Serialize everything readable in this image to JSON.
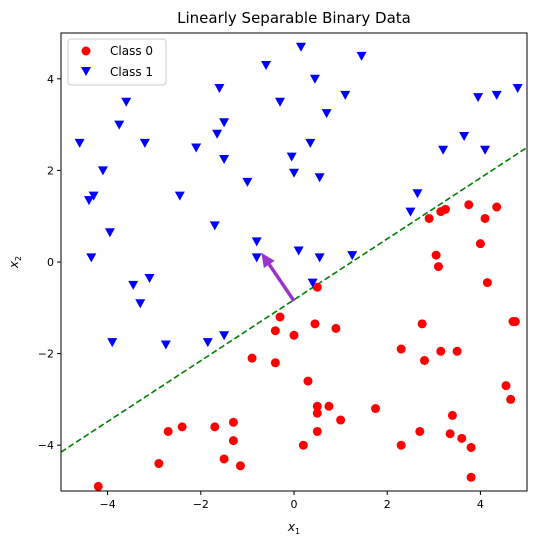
{
  "chart_data": {
    "type": "scatter",
    "title": "Linearly Separable Binary Data",
    "xlabel": "x",
    "xlabel_sub": "1",
    "ylabel": "x",
    "ylabel_sub": "2",
    "xlim": [
      -5,
      5
    ],
    "ylim": [
      -5,
      5
    ],
    "xticks": [
      -4,
      -2,
      0,
      2,
      4
    ],
    "yticks": [
      -4,
      -2,
      0,
      2,
      4
    ],
    "xtick_labels": [
      "−4",
      "−2",
      "0",
      "2",
      "4"
    ],
    "ytick_labels": [
      "−4",
      "−2",
      "0",
      "2",
      "4"
    ],
    "legend_position": "top-left",
    "series": [
      {
        "name": "Class 0",
        "marker": "circle",
        "color": "#ff0000",
        "points": [
          [
            -4.2,
            -4.9
          ],
          [
            -2.9,
            -4.4
          ],
          [
            -2.7,
            -3.7
          ],
          [
            -2.4,
            -3.6
          ],
          [
            -1.7,
            -3.6
          ],
          [
            -1.5,
            -4.3
          ],
          [
            -1.3,
            -3.9
          ],
          [
            -1.3,
            -3.5
          ],
          [
            -1.15,
            -4.45
          ],
          [
            -0.9,
            -2.1
          ],
          [
            -0.4,
            -2.2
          ],
          [
            -0.4,
            -1.5
          ],
          [
            -0.3,
            -1.2
          ],
          [
            0.0,
            -1.6
          ],
          [
            0.2,
            -4.0
          ],
          [
            0.3,
            -2.6
          ],
          [
            0.45,
            -1.35
          ],
          [
            0.5,
            -3.15
          ],
          [
            0.5,
            -3.3
          ],
          [
            0.5,
            -3.7
          ],
          [
            0.5,
            -0.55
          ],
          [
            0.75,
            -3.15
          ],
          [
            0.9,
            -1.45
          ],
          [
            1.0,
            -3.45
          ],
          [
            1.75,
            -3.2
          ],
          [
            2.3,
            -1.9
          ],
          [
            2.3,
            -4.0
          ],
          [
            2.7,
            -3.7
          ],
          [
            2.75,
            -1.35
          ],
          [
            2.8,
            -2.15
          ],
          [
            2.9,
            0.95
          ],
          [
            3.05,
            0.15
          ],
          [
            3.1,
            -0.1
          ],
          [
            3.15,
            -1.95
          ],
          [
            3.15,
            1.1
          ],
          [
            3.25,
            1.15
          ],
          [
            3.35,
            -3.75
          ],
          [
            3.4,
            -3.35
          ],
          [
            3.5,
            -1.95
          ],
          [
            3.6,
            -3.85
          ],
          [
            3.75,
            1.25
          ],
          [
            3.8,
            -4.05
          ],
          [
            3.8,
            -4.7
          ],
          [
            4.0,
            0.4
          ],
          [
            4.1,
            0.95
          ],
          [
            4.15,
            -0.45
          ],
          [
            4.35,
            1.2
          ],
          [
            4.55,
            -2.7
          ],
          [
            4.65,
            -3.0
          ],
          [
            4.7,
            -1.3
          ],
          [
            4.75,
            -1.3
          ]
        ]
      },
      {
        "name": "Class 1",
        "marker": "triangle-down",
        "color": "#0000ff",
        "points": [
          [
            -4.6,
            2.6
          ],
          [
            -4.4,
            1.35
          ],
          [
            -4.3,
            1.45
          ],
          [
            -4.35,
            0.1
          ],
          [
            -4.1,
            2.0
          ],
          [
            -3.95,
            0.65
          ],
          [
            -3.9,
            -1.75
          ],
          [
            -3.75,
            3.0
          ],
          [
            -3.6,
            3.5
          ],
          [
            -3.45,
            -0.5
          ],
          [
            -3.3,
            -0.9
          ],
          [
            -3.2,
            2.6
          ],
          [
            -3.1,
            -0.35
          ],
          [
            -2.75,
            -1.8
          ],
          [
            -2.45,
            1.45
          ],
          [
            -2.1,
            2.5
          ],
          [
            -1.85,
            -1.75
          ],
          [
            -1.7,
            0.8
          ],
          [
            -1.65,
            2.8
          ],
          [
            -1.6,
            3.8
          ],
          [
            -1.5,
            3.05
          ],
          [
            -1.5,
            2.25
          ],
          [
            -1.5,
            -1.6
          ],
          [
            -1.0,
            1.75
          ],
          [
            -0.8,
            0.45
          ],
          [
            -0.8,
            0.1
          ],
          [
            -0.6,
            4.3
          ],
          [
            -0.3,
            3.5
          ],
          [
            -0.05,
            2.3
          ],
          [
            0.0,
            1.95
          ],
          [
            0.1,
            0.25
          ],
          [
            0.15,
            4.7
          ],
          [
            0.35,
            2.6
          ],
          [
            0.4,
            -0.45
          ],
          [
            0.45,
            4.0
          ],
          [
            0.55,
            0.1
          ],
          [
            0.55,
            1.85
          ],
          [
            0.7,
            3.25
          ],
          [
            1.1,
            3.65
          ],
          [
            1.25,
            0.15
          ],
          [
            1.45,
            4.5
          ],
          [
            2.5,
            1.1
          ],
          [
            2.65,
            1.5
          ],
          [
            3.2,
            2.45
          ],
          [
            3.65,
            2.75
          ],
          [
            3.95,
            3.6
          ],
          [
            4.1,
            2.45
          ],
          [
            4.35,
            3.65
          ],
          [
            4.8,
            3.8
          ]
        ]
      }
    ],
    "decision_boundary": {
      "style": "dashed",
      "color": "#008000",
      "x": [
        -5,
        5
      ],
      "y": [
        -4.15,
        2.5
      ]
    },
    "normal_vector": {
      "color": "#9933cc",
      "from": [
        0.0,
        -0.85
      ],
      "to": [
        -0.7,
        0.2
      ]
    }
  }
}
